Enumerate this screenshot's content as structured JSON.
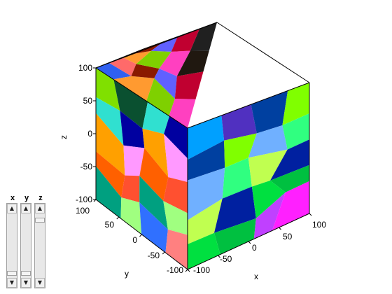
{
  "plot": {
    "axes": {
      "x": {
        "label": "x",
        "ticks": [
          "-100",
          "-50",
          "0",
          "50",
          "100"
        ]
      },
      "y": {
        "label": "y",
        "ticks": [
          "-100",
          "-50",
          "0",
          "50",
          "100"
        ]
      },
      "z": {
        "label": "z",
        "ticks": [
          "-100",
          "-50",
          "0",
          "50",
          "100"
        ]
      }
    }
  },
  "sliders": [
    {
      "label": "x",
      "value": 0.03
    },
    {
      "label": "y",
      "value": 0.03
    },
    {
      "label": "z",
      "value": 0.93
    }
  ],
  "colors": {
    "top": [
      "#3060f0",
      "#ff9a30",
      "#7fd000",
      "#ff40c0",
      "#201810",
      "#ff99cc",
      "#ff70a0",
      "#5aff8a",
      "#ff6a6a",
      "#8a1a00",
      "#6060ff",
      "#c00030",
      "#202020",
      "#4040e0",
      "#e0e0ff"
    ],
    "left": [
      "#80e000",
      "#30e0d0",
      "#ffa000",
      "#ff6000",
      "#00a080",
      "#3070ff",
      "#ff30d0",
      "#c000c0",
      "#0a5030",
      "#0000a0",
      "#ff99ff",
      "#ff5030",
      "#a0ff80",
      "#ff8080",
      "#ffaa20"
    ],
    "right": [
      "#00a0ff",
      "#0040a0",
      "#70b0ff",
      "#c0ff50",
      "#00e040",
      "#c040ff",
      "#30c0ff",
      "#ffa000",
      "#5030c0",
      "#80ff00",
      "#30ff80",
      "#0020a0",
      "#00c040",
      "#ff20ff",
      "#2080ff"
    ]
  }
}
